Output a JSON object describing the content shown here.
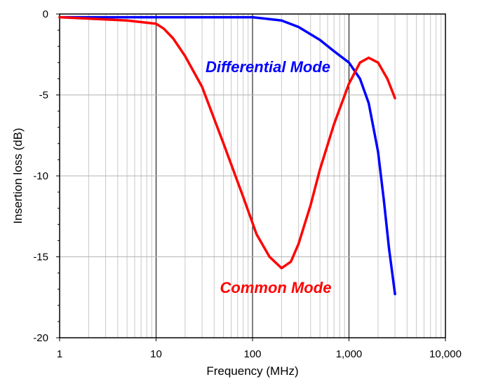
{
  "chart_data": {
    "type": "line",
    "title": "",
    "xlabel": "Frequency (MHz)",
    "ylabel": "Insertion loss (dB)",
    "xscale": "log",
    "xlim": [
      1,
      10000
    ],
    "ylim": [
      -20,
      0
    ],
    "x_tick_labels": [
      "1",
      "10",
      "100",
      "1,000",
      "10,000"
    ],
    "x_tick_values": [
      1,
      10,
      100,
      1000,
      10000
    ],
    "y_tick_labels": [
      "0",
      "-5",
      "-10",
      "-15",
      "-20"
    ],
    "y_tick_values": [
      0,
      -5,
      -10,
      -15,
      -20
    ],
    "grid": "on (log minor grid on x, major grid on y)",
    "legend": "none (series labeled directly on plot)",
    "series": [
      {
        "name": "Differential Mode",
        "color": "#0000ff",
        "x": [
          1,
          10,
          100,
          200,
          300,
          500,
          700,
          1000,
          1300,
          1600,
          2000,
          2300,
          2600,
          3000
        ],
        "y": [
          -0.2,
          -0.2,
          -0.2,
          -0.4,
          -0.8,
          -1.6,
          -2.3,
          -3.0,
          -4.0,
          -5.5,
          -8.5,
          -11.5,
          -14.5,
          -17.3
        ]
      },
      {
        "name": "Common Mode",
        "color": "#ff0000",
        "x": [
          1,
          5,
          10,
          12,
          15,
          20,
          30,
          50,
          80,
          110,
          150,
          200,
          250,
          300,
          400,
          500,
          700,
          1000,
          1300,
          1600,
          2000,
          2500,
          3000
        ],
        "y": [
          -0.2,
          -0.4,
          -0.6,
          -0.9,
          -1.5,
          -2.6,
          -4.5,
          -8.0,
          -11.3,
          -13.6,
          -15.0,
          -15.7,
          -15.3,
          -14.2,
          -11.8,
          -9.6,
          -6.8,
          -4.3,
          -3.0,
          -2.7,
          -3.0,
          -4.0,
          -5.2
        ]
      }
    ]
  }
}
